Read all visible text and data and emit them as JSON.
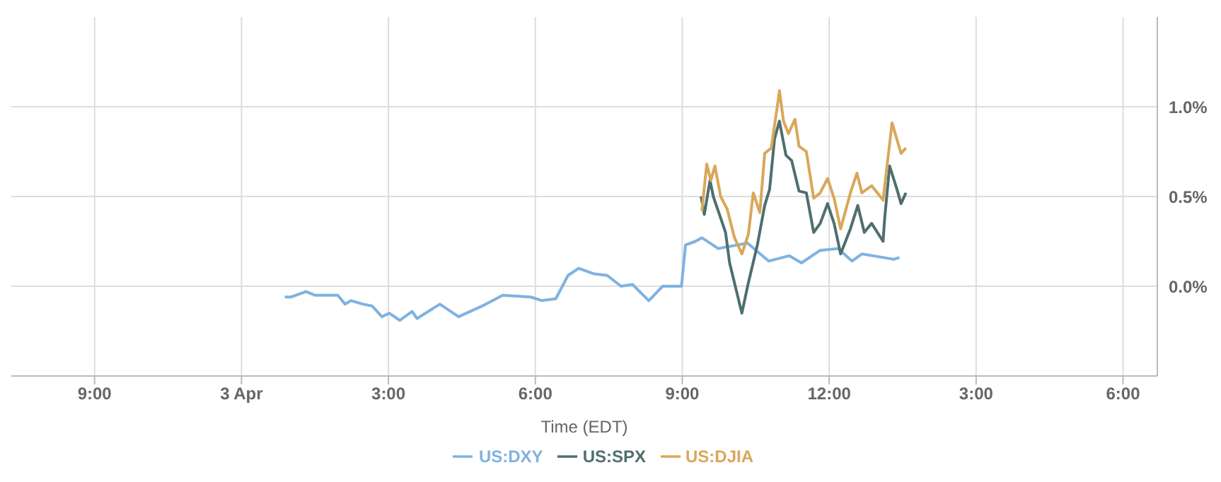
{
  "chart_data": {
    "type": "line",
    "xlabel": "Time (EDT)",
    "xlim": [
      "--04-02T19:18",
      "--04-03T18:42"
    ],
    "xticks": [
      {
        "value": "--04-02T21:00",
        "label": "9:00"
      },
      {
        "value": "--04-03",
        "label": "3 Apr"
      },
      {
        "value": "--04-03T03:00",
        "label": "3:00"
      },
      {
        "value": "--04-03T06:00",
        "label": "6:00"
      },
      {
        "value": "--04-03T09:00",
        "label": "9:00"
      },
      {
        "value": "--04-03T12:00",
        "label": "12:00"
      },
      {
        "value": "--04-03T15:00",
        "label": "3:00"
      },
      {
        "value": "--04-03T18:00",
        "label": "6:00"
      }
    ],
    "ylim": [
      -0.5,
      1.5
    ],
    "yticks": [
      {
        "value": 0,
        "label": "0.0%"
      },
      {
        "value": 0.5,
        "label": "0.5%"
      },
      {
        "value": 1,
        "label": "1.0%"
      }
    ],
    "grid": true,
    "legend": "bottom",
    "marker": "none",
    "line_style": "solid",
    "series": [
      {
        "name": "US:DXY",
        "color": "#7fb2e0",
        "x": [
          "--04-03T00:53",
          "--04-03T01:01",
          "--04-03T01:19",
          "--04-03T01:30",
          "--04-03T01:58",
          "--04-03T02:07",
          "--04-03T02:14",
          "--04-03T02:29",
          "--04-03T02:40",
          "--04-03T02:52",
          "--04-03T03:01",
          "--04-03T03:14",
          "--04-03T03:29",
          "--04-03T03:35",
          "--04-03T04:03",
          "--04-03T04:26",
          "--04-03T04:55",
          "--04-03T05:20",
          "--04-03T05:54",
          "--04-03T06:08",
          "--04-03T06:25",
          "--04-03T06:40",
          "--04-03T06:53",
          "--04-03T07:11",
          "--04-03T07:28",
          "--04-03T07:45",
          "--04-03T07:59",
          "--04-03T08:19",
          "--04-03T08:36",
          "--04-03T08:59",
          "--04-03T09:04",
          "--04-03T09:16",
          "--04-03T09:24",
          "--04-03T09:44",
          "--04-03T10:20",
          "--04-03T10:46",
          "--04-03T11:11",
          "--04-03T11:26",
          "--04-03T11:49",
          "--04-03T12:11",
          "--04-03T12:28",
          "--04-03T12:40",
          "--04-03T13:19",
          "--04-03T13:26"
        ],
        "values": [
          -0.06,
          -0.06,
          -0.03,
          -0.05,
          -0.05,
          -0.1,
          -0.08,
          -0.1,
          -0.11,
          -0.17,
          -0.15,
          -0.19,
          -0.14,
          -0.18,
          -0.1,
          -0.17,
          -0.11,
          -0.05,
          -0.06,
          -0.08,
          -0.07,
          0.06,
          0.1,
          0.07,
          0.06,
          0,
          0.01,
          -0.08,
          0,
          0,
          0.23,
          0.25,
          0.27,
          0.21,
          0.24,
          0.14,
          0.17,
          0.13,
          0.2,
          0.21,
          0.14,
          0.18,
          0.15,
          0.16
        ]
      },
      {
        "name": "US:SPX",
        "color": "#4f6f6f",
        "x": [
          "--04-03T09:23",
          "--04-03T09:27",
          "--04-03T09:34",
          "--04-03T09:38",
          "--04-03T09:47",
          "--04-03T09:53",
          "--04-03T09:58",
          "--04-03T10:13",
          "--04-03T10:21",
          "--04-03T10:32",
          "--04-03T10:41",
          "--04-03T10:47",
          "--04-03T10:53",
          "--04-03T10:59",
          "--04-03T11:07",
          "--04-03T11:14",
          "--04-03T11:23",
          "--04-03T11:32",
          "--04-03T11:41",
          "--04-03T11:49",
          "--04-03T11:58",
          "--04-03T12:06",
          "--04-03T12:14",
          "--04-03T12:26",
          "--04-03T12:35",
          "--04-03T12:43",
          "--04-03T12:52",
          "--04-03T13:06",
          "--04-03T13:08",
          "--04-03T13:14",
          "--04-03T13:23",
          "--04-03T13:28",
          "--04-03T13:34"
        ],
        "values": [
          0.5,
          0.4,
          0.59,
          0.5,
          0.38,
          0.3,
          0.13,
          -0.15,
          0.02,
          0.23,
          0.45,
          0.54,
          0.82,
          0.92,
          0.73,
          0.7,
          0.53,
          0.52,
          0.3,
          0.35,
          0.46,
          0.35,
          0.18,
          0.32,
          0.45,
          0.3,
          0.35,
          0.25,
          0.38,
          0.67,
          0.54,
          0.46,
          0.52
        ]
      },
      {
        "name": "US:DJIA",
        "color": "#d9a75a",
        "x": [
          "--04-03T09:24",
          "--04-03T09:30",
          "--04-03T09:35",
          "--04-03T09:40",
          "--04-03T09:47",
          "--04-03T09:55",
          "--04-03T10:04",
          "--04-03T10:13",
          "--04-03T10:21",
          "--04-03T10:27",
          "--04-03T10:35",
          "--04-03T10:41",
          "--04-03T10:49",
          "--04-03T10:57",
          "--04-03T10:59",
          "--04-03T11:04",
          "--04-03T11:10",
          "--04-03T11:18",
          "--04-03T11:23",
          "--04-03T11:32",
          "--04-03T11:41",
          "--04-03T11:49",
          "--04-03T11:58",
          "--04-03T12:06",
          "--04-03T12:14",
          "--04-03T12:26",
          "--04-03T12:34",
          "--04-03T12:40",
          "--04-03T12:52",
          "--04-03T13:06",
          "--04-03T13:17",
          "--04-03T13:28",
          "--04-03T13:34"
        ],
        "values": [
          0.42,
          0.68,
          0.59,
          0.67,
          0.5,
          0.43,
          0.27,
          0.18,
          0.29,
          0.52,
          0.41,
          0.74,
          0.77,
          1.02,
          1.09,
          0.92,
          0.85,
          0.93,
          0.78,
          0.75,
          0.49,
          0.52,
          0.6,
          0.49,
          0.32,
          0.52,
          0.63,
          0.52,
          0.56,
          0.48,
          0.91,
          0.74,
          0.77
        ]
      }
    ]
  }
}
